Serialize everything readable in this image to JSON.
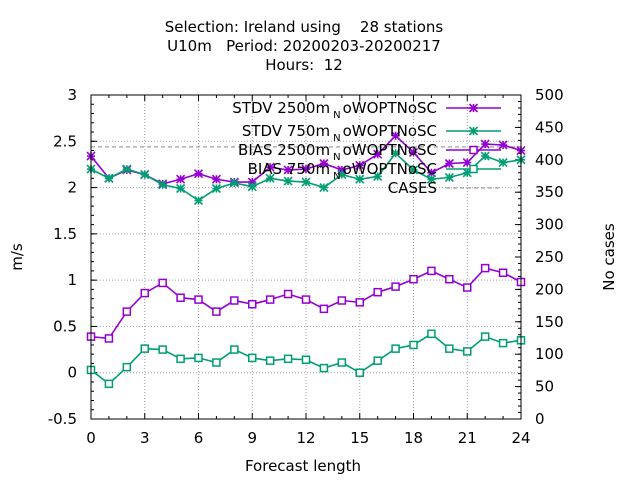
{
  "chart_data": {
    "type": "line",
    "title_lines": [
      "Selection: Ireland using    28 stations",
      "U10m   Period: 20200203-20200217",
      "Hours:  12"
    ],
    "xlabel": "Forecast length",
    "ylabel": "m/s",
    "y2label": "No cases",
    "xlim": [
      0,
      24
    ],
    "ylim": [
      -0.5,
      3
    ],
    "y2lim": [
      0,
      500
    ],
    "x_ticks": [
      "0",
      "3",
      "6",
      "9",
      "12",
      "15",
      "18",
      "21",
      "24"
    ],
    "y_ticks": [
      "-0.5",
      "0",
      "0.5",
      "1",
      "1.5",
      "2",
      "2.5",
      "3"
    ],
    "y2_ticks": [
      "0",
      "50",
      "100",
      "150",
      "200",
      "250",
      "300",
      "350",
      "400",
      "450",
      "500"
    ],
    "grid": true,
    "legend_position": "top-right",
    "x": [
      0,
      1,
      2,
      3,
      4,
      5,
      6,
      7,
      8,
      9,
      10,
      11,
      12,
      13,
      14,
      15,
      16,
      17,
      18,
      19,
      20,
      21,
      22,
      23,
      24
    ],
    "series": [
      {
        "name": "STDV 2500m",
        "name_sub": "N",
        "name_suffix": "oWOPTNoSC",
        "color": "#9400d3",
        "marker": "x-star",
        "values": [
          2.34,
          2.1,
          2.19,
          2.14,
          2.04,
          2.09,
          2.15,
          2.09,
          2.06,
          2.06,
          2.22,
          2.19,
          2.2,
          2.26,
          2.19,
          2.24,
          2.36,
          2.56,
          2.38,
          2.16,
          2.26,
          2.27,
          2.47,
          2.46,
          2.4
        ]
      },
      {
        "name": "STDV 750m",
        "name_sub": "N",
        "name_suffix": "oWOPTNoSC",
        "color": "#009e73",
        "marker": "x-star",
        "values": [
          2.2,
          2.1,
          2.2,
          2.14,
          2.03,
          1.99,
          1.86,
          1.99,
          2.05,
          2.01,
          2.1,
          2.07,
          2.06,
          2.0,
          2.14,
          2.09,
          2.12,
          2.37,
          2.19,
          2.09,
          2.11,
          2.16,
          2.34,
          2.27,
          2.3
        ]
      },
      {
        "name": "BIAS 2500m",
        "name_sub": "N",
        "name_suffix": "oWOPTNoSC",
        "color": "#9400d3",
        "marker": "open-square",
        "values": [
          0.39,
          0.37,
          0.66,
          0.86,
          0.97,
          0.81,
          0.79,
          0.66,
          0.78,
          0.74,
          0.79,
          0.85,
          0.79,
          0.69,
          0.78,
          0.76,
          0.87,
          0.93,
          1.01,
          1.1,
          1.01,
          0.92,
          1.13,
          1.08,
          0.98
        ]
      },
      {
        "name": "BIAS 750m",
        "name_sub": "N",
        "name_suffix": "oWOPTNoSC",
        "color": "#009e73",
        "marker": "open-square",
        "values": [
          0.03,
          -0.12,
          0.06,
          0.26,
          0.25,
          0.15,
          0.16,
          0.11,
          0.25,
          0.16,
          0.13,
          0.15,
          0.14,
          0.05,
          0.11,
          0.0,
          0.13,
          0.26,
          0.3,
          0.42,
          0.26,
          0.23,
          0.39,
          0.32,
          0.35
        ]
      },
      {
        "name": "CASES",
        "color": "#a0a0a0",
        "dashed": true,
        "axis": "y2",
        "values": [
          420,
          420,
          420,
          420,
          420,
          420,
          420,
          420,
          420,
          420,
          420,
          420,
          420,
          420,
          420,
          420,
          420,
          420,
          420,
          420,
          420,
          420,
          420,
          420,
          420
        ]
      }
    ]
  }
}
